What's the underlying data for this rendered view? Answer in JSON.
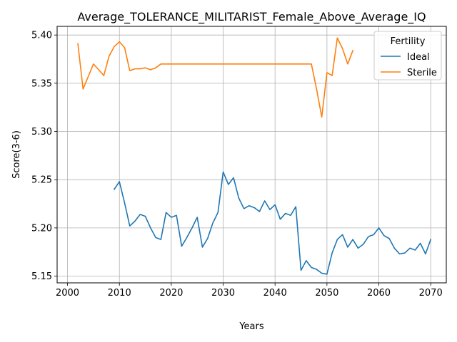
{
  "chart_data": {
    "type": "line",
    "title": "Average_TOLERANCE_MILITARIST_Female_Above_Average_IQ",
    "xlabel": "Years",
    "ylabel": "Score(3-6)",
    "xlim": [
      1998,
      2073
    ],
    "ylim": [
      5.143,
      5.409
    ],
    "x_ticks": [
      2000,
      2010,
      2020,
      2030,
      2040,
      2050,
      2060,
      2070
    ],
    "x_tick_labels": [
      "2000",
      "2010",
      "2020",
      "2030",
      "2040",
      "2050",
      "2060",
      "2070"
    ],
    "y_ticks": [
      5.15,
      5.2,
      5.25,
      5.3,
      5.35,
      5.4
    ],
    "y_tick_labels": [
      "5.15",
      "5.20",
      "5.25",
      "5.30",
      "5.35",
      "5.40"
    ],
    "grid": true,
    "legend": {
      "title": "Fertility",
      "placement": "top-right"
    },
    "series": [
      {
        "name": "Ideal",
        "color": "#1f77b4",
        "x": [
          2009,
          2010,
          2011,
          2012,
          2013,
          2014,
          2015,
          2016,
          2017,
          2018,
          2019,
          2020,
          2021,
          2022,
          2023,
          2024,
          2025,
          2026,
          2027,
          2028,
          2029,
          2030,
          2031,
          2032,
          2033,
          2034,
          2035,
          2036,
          2037,
          2038,
          2039,
          2040,
          2041,
          2042,
          2043,
          2044,
          2045,
          2046,
          2047,
          2048,
          2049,
          2050,
          2051,
          2052,
          2053,
          2054,
          2055,
          2056,
          2057,
          2058,
          2059,
          2060,
          2061,
          2062,
          2063,
          2064,
          2065,
          2066,
          2067,
          2068,
          2069,
          2070
        ],
        "values": [
          5.24,
          5.248,
          5.226,
          5.202,
          5.207,
          5.214,
          5.212,
          5.2,
          5.19,
          5.188,
          5.216,
          5.211,
          5.213,
          5.181,
          5.19,
          5.2,
          5.211,
          5.18,
          5.189,
          5.205,
          5.216,
          5.258,
          5.245,
          5.252,
          5.231,
          5.22,
          5.223,
          5.221,
          5.217,
          5.228,
          5.219,
          5.224,
          5.209,
          5.215,
          5.213,
          5.222,
          5.156,
          5.166,
          5.159,
          5.157,
          5.153,
          5.152,
          5.174,
          5.188,
          5.193,
          5.18,
          5.188,
          5.179,
          5.183,
          5.191,
          5.193,
          5.2,
          5.192,
          5.189,
          5.179,
          5.173,
          5.174,
          5.179,
          5.177,
          5.184,
          5.173,
          5.188
        ]
      },
      {
        "name": "Sterile",
        "color": "#ff7f0e",
        "x": [
          2002,
          2003,
          2004,
          2005,
          2006,
          2007,
          2008,
          2009,
          2010,
          2011,
          2012,
          2013,
          2014,
          2015,
          2016,
          2017,
          2018,
          2019,
          2020,
          2021,
          2022,
          2023,
          2024,
          2025,
          2026,
          2027,
          2028,
          2029,
          2030,
          2031,
          2032,
          2033,
          2034,
          2035,
          2036,
          2037,
          2038,
          2039,
          2040,
          2041,
          2042,
          2043,
          2044,
          2045,
          2046,
          2047,
          2048,
          2049,
          2050,
          2051,
          2052,
          2053,
          2054,
          2055
        ],
        "values": [
          5.391,
          5.344,
          5.357,
          5.37,
          5.364,
          5.358,
          5.378,
          5.388,
          5.393,
          5.387,
          5.363,
          5.365,
          5.365,
          5.366,
          5.364,
          5.366,
          5.37,
          5.37,
          5.37,
          5.37,
          5.37,
          5.37,
          5.37,
          5.37,
          5.37,
          5.37,
          5.37,
          5.37,
          5.37,
          5.37,
          5.37,
          5.37,
          5.37,
          5.37,
          5.37,
          5.37,
          5.37,
          5.37,
          5.37,
          5.37,
          5.37,
          5.37,
          5.37,
          5.37,
          5.37,
          5.37,
          5.344,
          5.315,
          5.361,
          5.358,
          5.397,
          5.386,
          5.37,
          5.384
        ]
      }
    ]
  }
}
